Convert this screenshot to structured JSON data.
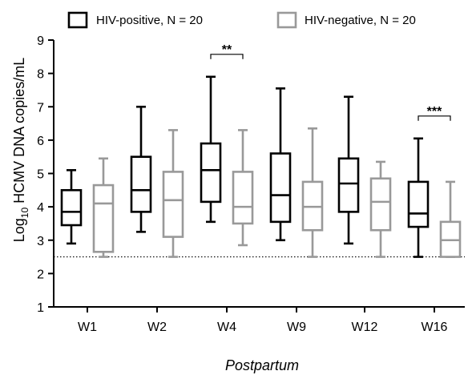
{
  "chart_data": {
    "type": "box",
    "title": "",
    "xlabel": "Postpartum",
    "ylabel_prefix": "Log",
    "ylabel_sub": "10",
    "ylabel_rest": " HCMV DNA copies/mL",
    "ylim": [
      1,
      9
    ],
    "yticks": [
      "1",
      "2",
      "3",
      "4",
      "5",
      "6",
      "7",
      "8",
      "9"
    ],
    "categories": [
      "W1",
      "W2",
      "W4",
      "W9",
      "W12",
      "W16"
    ],
    "reference_line": 2.5,
    "series": [
      {
        "name": "HIV-positive, N = 20",
        "color": "#000000",
        "boxes": [
          {
            "min": 2.9,
            "q1": 3.45,
            "median": 3.85,
            "q3": 4.5,
            "max": 5.1
          },
          {
            "min": 3.25,
            "q1": 3.85,
            "median": 4.5,
            "q3": 5.5,
            "max": 7.0
          },
          {
            "min": 3.55,
            "q1": 4.15,
            "median": 5.1,
            "q3": 5.9,
            "max": 7.9
          },
          {
            "min": 3.0,
            "q1": 3.55,
            "median": 4.35,
            "q3": 5.6,
            "max": 7.55
          },
          {
            "min": 2.9,
            "q1": 3.85,
            "median": 4.7,
            "q3": 5.45,
            "max": 7.3
          },
          {
            "min": 2.5,
            "q1": 3.4,
            "median": 3.8,
            "q3": 4.75,
            "max": 6.05
          }
        ]
      },
      {
        "name": "HIV-negative, N = 20",
        "color": "#999999",
        "boxes": [
          {
            "min": 2.5,
            "q1": 2.65,
            "median": 4.1,
            "q3": 4.65,
            "max": 5.45
          },
          {
            "min": 2.5,
            "q1": 3.1,
            "median": 4.2,
            "q3": 5.05,
            "max": 6.3
          },
          {
            "min": 2.85,
            "q1": 3.5,
            "median": 4.0,
            "q3": 5.05,
            "max": 6.3
          },
          {
            "min": 2.5,
            "q1": 3.3,
            "median": 4.0,
            "q3": 4.75,
            "max": 6.35
          },
          {
            "min": 2.5,
            "q1": 3.3,
            "median": 4.15,
            "q3": 4.85,
            "max": 5.35
          },
          {
            "min": 2.5,
            "q1": 2.5,
            "median": 3.0,
            "q3": 3.55,
            "max": 4.75
          }
        ]
      }
    ],
    "significance": [
      {
        "category": "W4",
        "label": "**"
      },
      {
        "category": "W16",
        "label": "***"
      }
    ],
    "legend_position": "top"
  }
}
